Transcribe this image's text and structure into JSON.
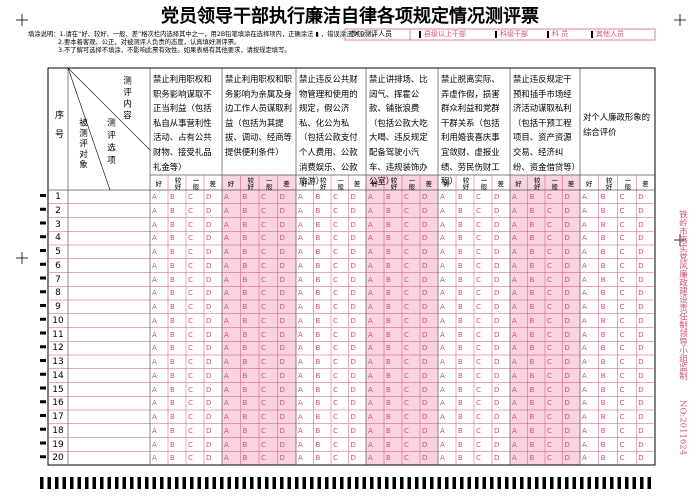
{
  "title": "党员领导干部执行廉洁自律各项规定情况测评票",
  "instructions": [
    "填涂说明：1.请在“好、较好、一般、差”格次栏内选择其中之一，用2B铅笔填涂在选择项内，正确涂法 ▮ ，错误涂法 ✗ ✓ ⁄ 。",
    "2.要本着客观、公正，对被测评人负责的态度，认真填好测评票。",
    "3.不了解可选择不填涂，不影响此票有效性。如果表格有其他要求，请按规定填写。"
  ],
  "participants": {
    "label": "参加测评人员",
    "options": [
      "县级以上干部",
      "科级干部",
      "科 员",
      "其他人员"
    ]
  },
  "table": {
    "header_seq": "序号",
    "header_subject": "被测评对象",
    "header_content": "测评内容",
    "header_option": "测评选项",
    "columns": [
      "禁止利用职权和职务影响谋取不正当利益（包括私自从事营利性活动、占有公共财物、接受礼品礼金等）",
      "禁止利用职权和职务影响为亲属及身边工作人员谋取利益（包括为其提拔、调动、经商等提供便利条件）",
      "禁止违反公共财物管理和使用的规定，假公济私、化公为私（包括公款支付个人费用、公款消费娱乐、公款旅游）",
      "禁止讲排场、比阔气、挥霍公款、铺张浪费（包括公款大吃大喝、违反规定配备驾驶小汽车、违规装饰办公室）",
      "禁止脱离实际、弄虚作假，损害群众利益和党群干群关系（包括利用婚丧喜庆事宜敛财、虚报业绩、劳民伤财工程）",
      "禁止违反规定干预和插手市场经济活动谋取私利（包括干预工程项目、资产资源交易、经济纠纷、资金借贷等）",
      "对个人廉政形象的综合评价"
    ],
    "grades": [
      "好",
      "较好",
      "一般",
      "差"
    ],
    "choices": [
      "A",
      "B",
      "C",
      "D"
    ],
    "rows": [
      "1",
      "2",
      "3",
      "4",
      "5",
      "6",
      "7",
      "8",
      "9",
      "10",
      "11",
      "12",
      "13",
      "14",
      "15",
      "16",
      "17",
      "18",
      "19",
      "20"
    ]
  },
  "footer": {
    "issuer": "铁岭市落实党风廉政建设责任制领导小组监制",
    "number": "NO:2011024"
  }
}
